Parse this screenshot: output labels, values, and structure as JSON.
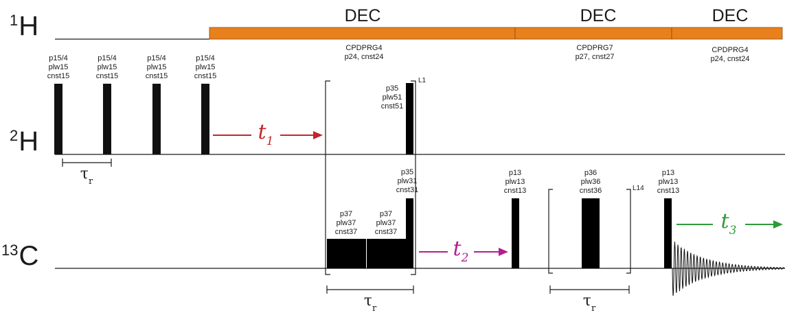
{
  "diagram": {
    "channels": {
      "h1": {
        "superscript": "1",
        "symbol": "H"
      },
      "h2": {
        "superscript": "2",
        "symbol": "H"
      },
      "c13": {
        "superscript": "13",
        "symbol": "C"
      }
    },
    "decoupling": [
      {
        "label": "DEC",
        "program": "CPDPRG4",
        "params": "p24, cnst24"
      },
      {
        "label": "DEC",
        "program": "CPDPRG7",
        "params": "p27, cnst27"
      },
      {
        "label": "DEC",
        "program": "CPDPRG4",
        "params": "p24, cnst24"
      }
    ],
    "deuterium_pulses": [
      {
        "l1": "p15/4",
        "l2": "plw15",
        "l3": "cnst15"
      },
      {
        "l1": "p15/4",
        "l2": "plw15",
        "l3": "cnst15"
      },
      {
        "l1": "p15/4",
        "l2": "plw15",
        "l3": "cnst15"
      },
      {
        "l1": "p15/4",
        "l2": "plw15",
        "l3": "cnst15"
      }
    ],
    "mixing_pulse_2h": {
      "l1": "p35",
      "l2": "plw51",
      "l3": "cnst51"
    },
    "carbon_pulses": {
      "cp1": {
        "l1": "p37",
        "l2": "plw37",
        "l3": "cnst37"
      },
      "cp2": {
        "l1": "p37",
        "l2": "plw37",
        "l3": "cnst37"
      },
      "p35": {
        "l1": "p35",
        "l2": "plw31",
        "l3": "cnst31"
      },
      "p13a": {
        "l1": "p13",
        "l2": "plw13",
        "l3": "cnst13"
      },
      "p36": {
        "l1": "p36",
        "l2": "plw36",
        "l3": "cnst36"
      },
      "p13b": {
        "l1": "p13",
        "l2": "plw13",
        "l3": "cnst13"
      }
    },
    "loops": {
      "l1": "L1",
      "l14": "L14"
    },
    "evolution": {
      "t1": {
        "symbol": "t",
        "sub": "1",
        "color": "#c0262b"
      },
      "t2": {
        "symbol": "t",
        "sub": "2",
        "color": "#b41e8c"
      },
      "t3": {
        "symbol": "t",
        "sub": "3",
        "color": "#2e9a3a"
      }
    },
    "tau": {
      "symbol": "τ",
      "sub": "r"
    },
    "colors": {
      "dec_bar": "#e8801c",
      "pulse": "#111111",
      "line": "#1a1a1a"
    }
  }
}
